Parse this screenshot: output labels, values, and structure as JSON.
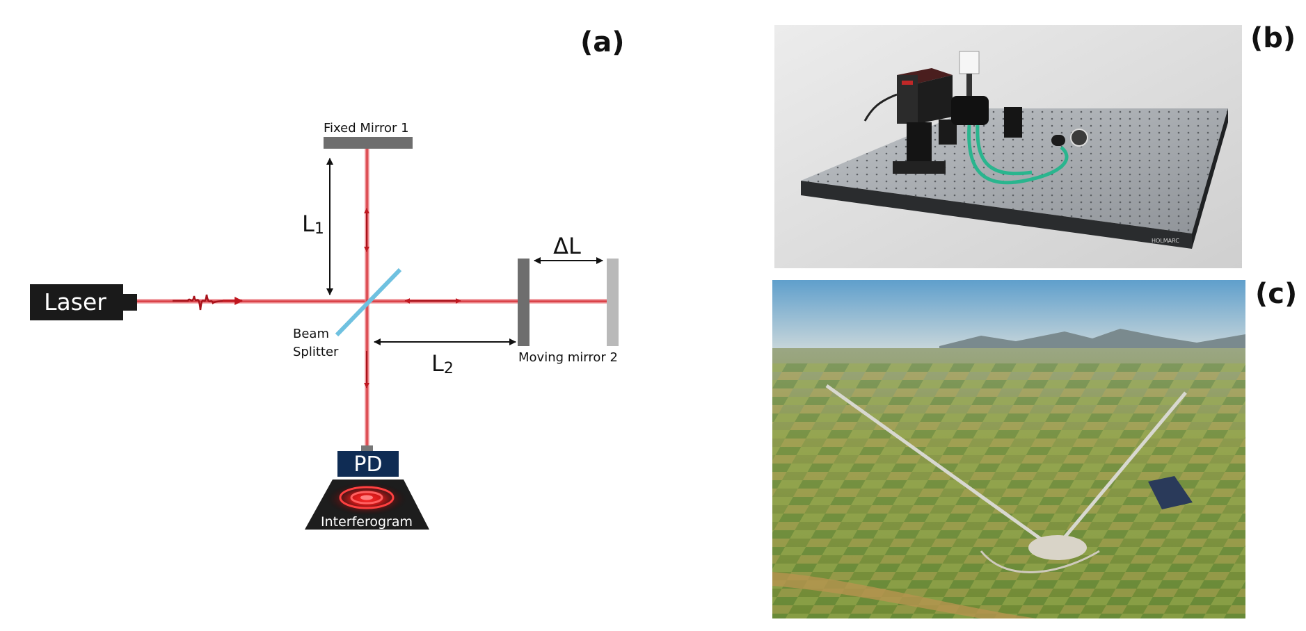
{
  "labels": {
    "panel_a": "(a)",
    "panel_b": "(b)",
    "panel_c": "(c)"
  },
  "diagram": {
    "laser": "Laser",
    "fixed_mirror": "Fixed Mirror 1",
    "beam_splitter_line1": "Beam",
    "beam_splitter_line2": "Splitter",
    "moving_mirror": "Moving mirror 2",
    "l1_letter": "L",
    "l1_sub": "1",
    "l2_letter": "L",
    "l2_sub": "2",
    "delta_l": "ΔL",
    "detector": "PD",
    "interferogram": "Interferogram"
  },
  "photo_b": {
    "brand": "HOLMARC"
  },
  "colors": {
    "beam": "#c0171f",
    "beam_glow": "#f4a0a5",
    "splitter": "#6fc1e0",
    "mirror_dark": "#6e6e6e",
    "mirror_light": "#b9b9b9",
    "device": "#1a1a1a",
    "pd_box": "#0f2c54",
    "table": "#9ea3a8",
    "sky": "#7fb2d4",
    "field": "#8aa04a"
  }
}
